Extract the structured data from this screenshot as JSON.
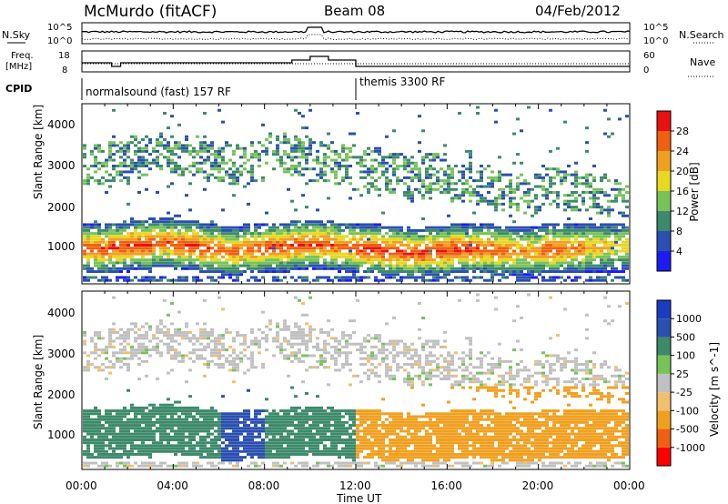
{
  "header": {
    "station": "McMurdo (fitACF)",
    "beam": "Beam 08",
    "date": "04/Feb/2012"
  },
  "noise_panel": {
    "left_label": "N.Sky",
    "right_label": "N.Search",
    "left_ticks": [
      "10^5",
      "10^0"
    ],
    "right_ticks": [
      "10^5",
      "10^0"
    ]
  },
  "freq_panel": {
    "left_label_1": "Freq.",
    "left_label_2": "[MHz]",
    "left_ticks": [
      "18",
      "8"
    ],
    "right_label": "Nave",
    "right_ticks": [
      "60",
      "0"
    ]
  },
  "cpid": {
    "label": "CPID",
    "segments": [
      {
        "start_hour": 0,
        "text": "normalsound (fast) 157 RF"
      },
      {
        "start_hour": 12,
        "text": "themis 3300 RF"
      }
    ]
  },
  "x_axis": {
    "label": "Time UT",
    "ticks": [
      "00:00",
      "04:00",
      "08:00",
      "12:00",
      "16:00",
      "20:00",
      "00:00"
    ],
    "range_hours": [
      0,
      24
    ]
  },
  "colors": {
    "power": [
      "#1c1cf0",
      "#2a4fb0",
      "#3c8a6a",
      "#78c25a",
      "#e8d820",
      "#f0a020",
      "#f06010",
      "#e81010",
      "#ff0000"
    ],
    "velocity": [
      "#ff0000",
      "#f06010",
      "#f0a020",
      "#f0c070",
      "#c0c0c0",
      "#78c25a",
      "#3c8a6a",
      "#2a4fb0",
      "#1c3cc0"
    ]
  },
  "chart_data": [
    {
      "type": "heatmap",
      "name": "power",
      "ylabel": "Slant Range [km]",
      "yticks": [
        "1000",
        "2000",
        "3000",
        "4000"
      ],
      "ylim": [
        200,
        4500
      ],
      "xlim": [
        0,
        24
      ],
      "colorbar": {
        "label": "Power [dB]",
        "ticks": [
          "4",
          "8",
          "12",
          "16",
          "20",
          "24",
          "28"
        ],
        "range": [
          0,
          32
        ]
      },
      "band_center_km": [
        1000,
        1050,
        1100,
        1150,
        1100,
        1000,
        950,
        1000,
        1050,
        1100,
        1100,
        1050,
        1000,
        950,
        900,
        950,
        1000,
        1000,
        950,
        950,
        1000,
        1000,
        1050,
        1050
      ],
      "band_peak_db": [
        26,
        27,
        28,
        26,
        27,
        26,
        24,
        25,
        26,
        27,
        26,
        25,
        28,
        28,
        27,
        27,
        28,
        26,
        24,
        22,
        26,
        24,
        20,
        18
      ],
      "secondary_echo_km": [
        3000,
        3100,
        3200,
        3300,
        3200,
        3100,
        3000,
        3100,
        3300,
        3200,
        3100,
        3000,
        2900,
        2800,
        2700,
        2800,
        2600,
        2500,
        2400,
        2300,
        2500,
        2400,
        2300,
        2200
      ]
    },
    {
      "type": "heatmap",
      "name": "velocity",
      "ylabel": "Slant Range [km]",
      "yticks": [
        "1000",
        "2000",
        "3000",
        "4000"
      ],
      "ylim": [
        200,
        4500
      ],
      "xlim": [
        0,
        24
      ],
      "colorbar": {
        "label": "Velocity [m s^-1]",
        "ticks": [
          "1000",
          "500",
          "100",
          "25",
          "-25",
          "-100",
          "-500",
          "-1000"
        ],
        "range": [
          -1000,
          1000
        ]
      },
      "band_velocity_ms": [
        200,
        250,
        300,
        300,
        250,
        300,
        600,
        700,
        400,
        300,
        250,
        200,
        -300,
        -350,
        -400,
        -350,
        -300,
        -300,
        -250,
        -300,
        -350,
        -300,
        -250,
        -300
      ]
    }
  ]
}
